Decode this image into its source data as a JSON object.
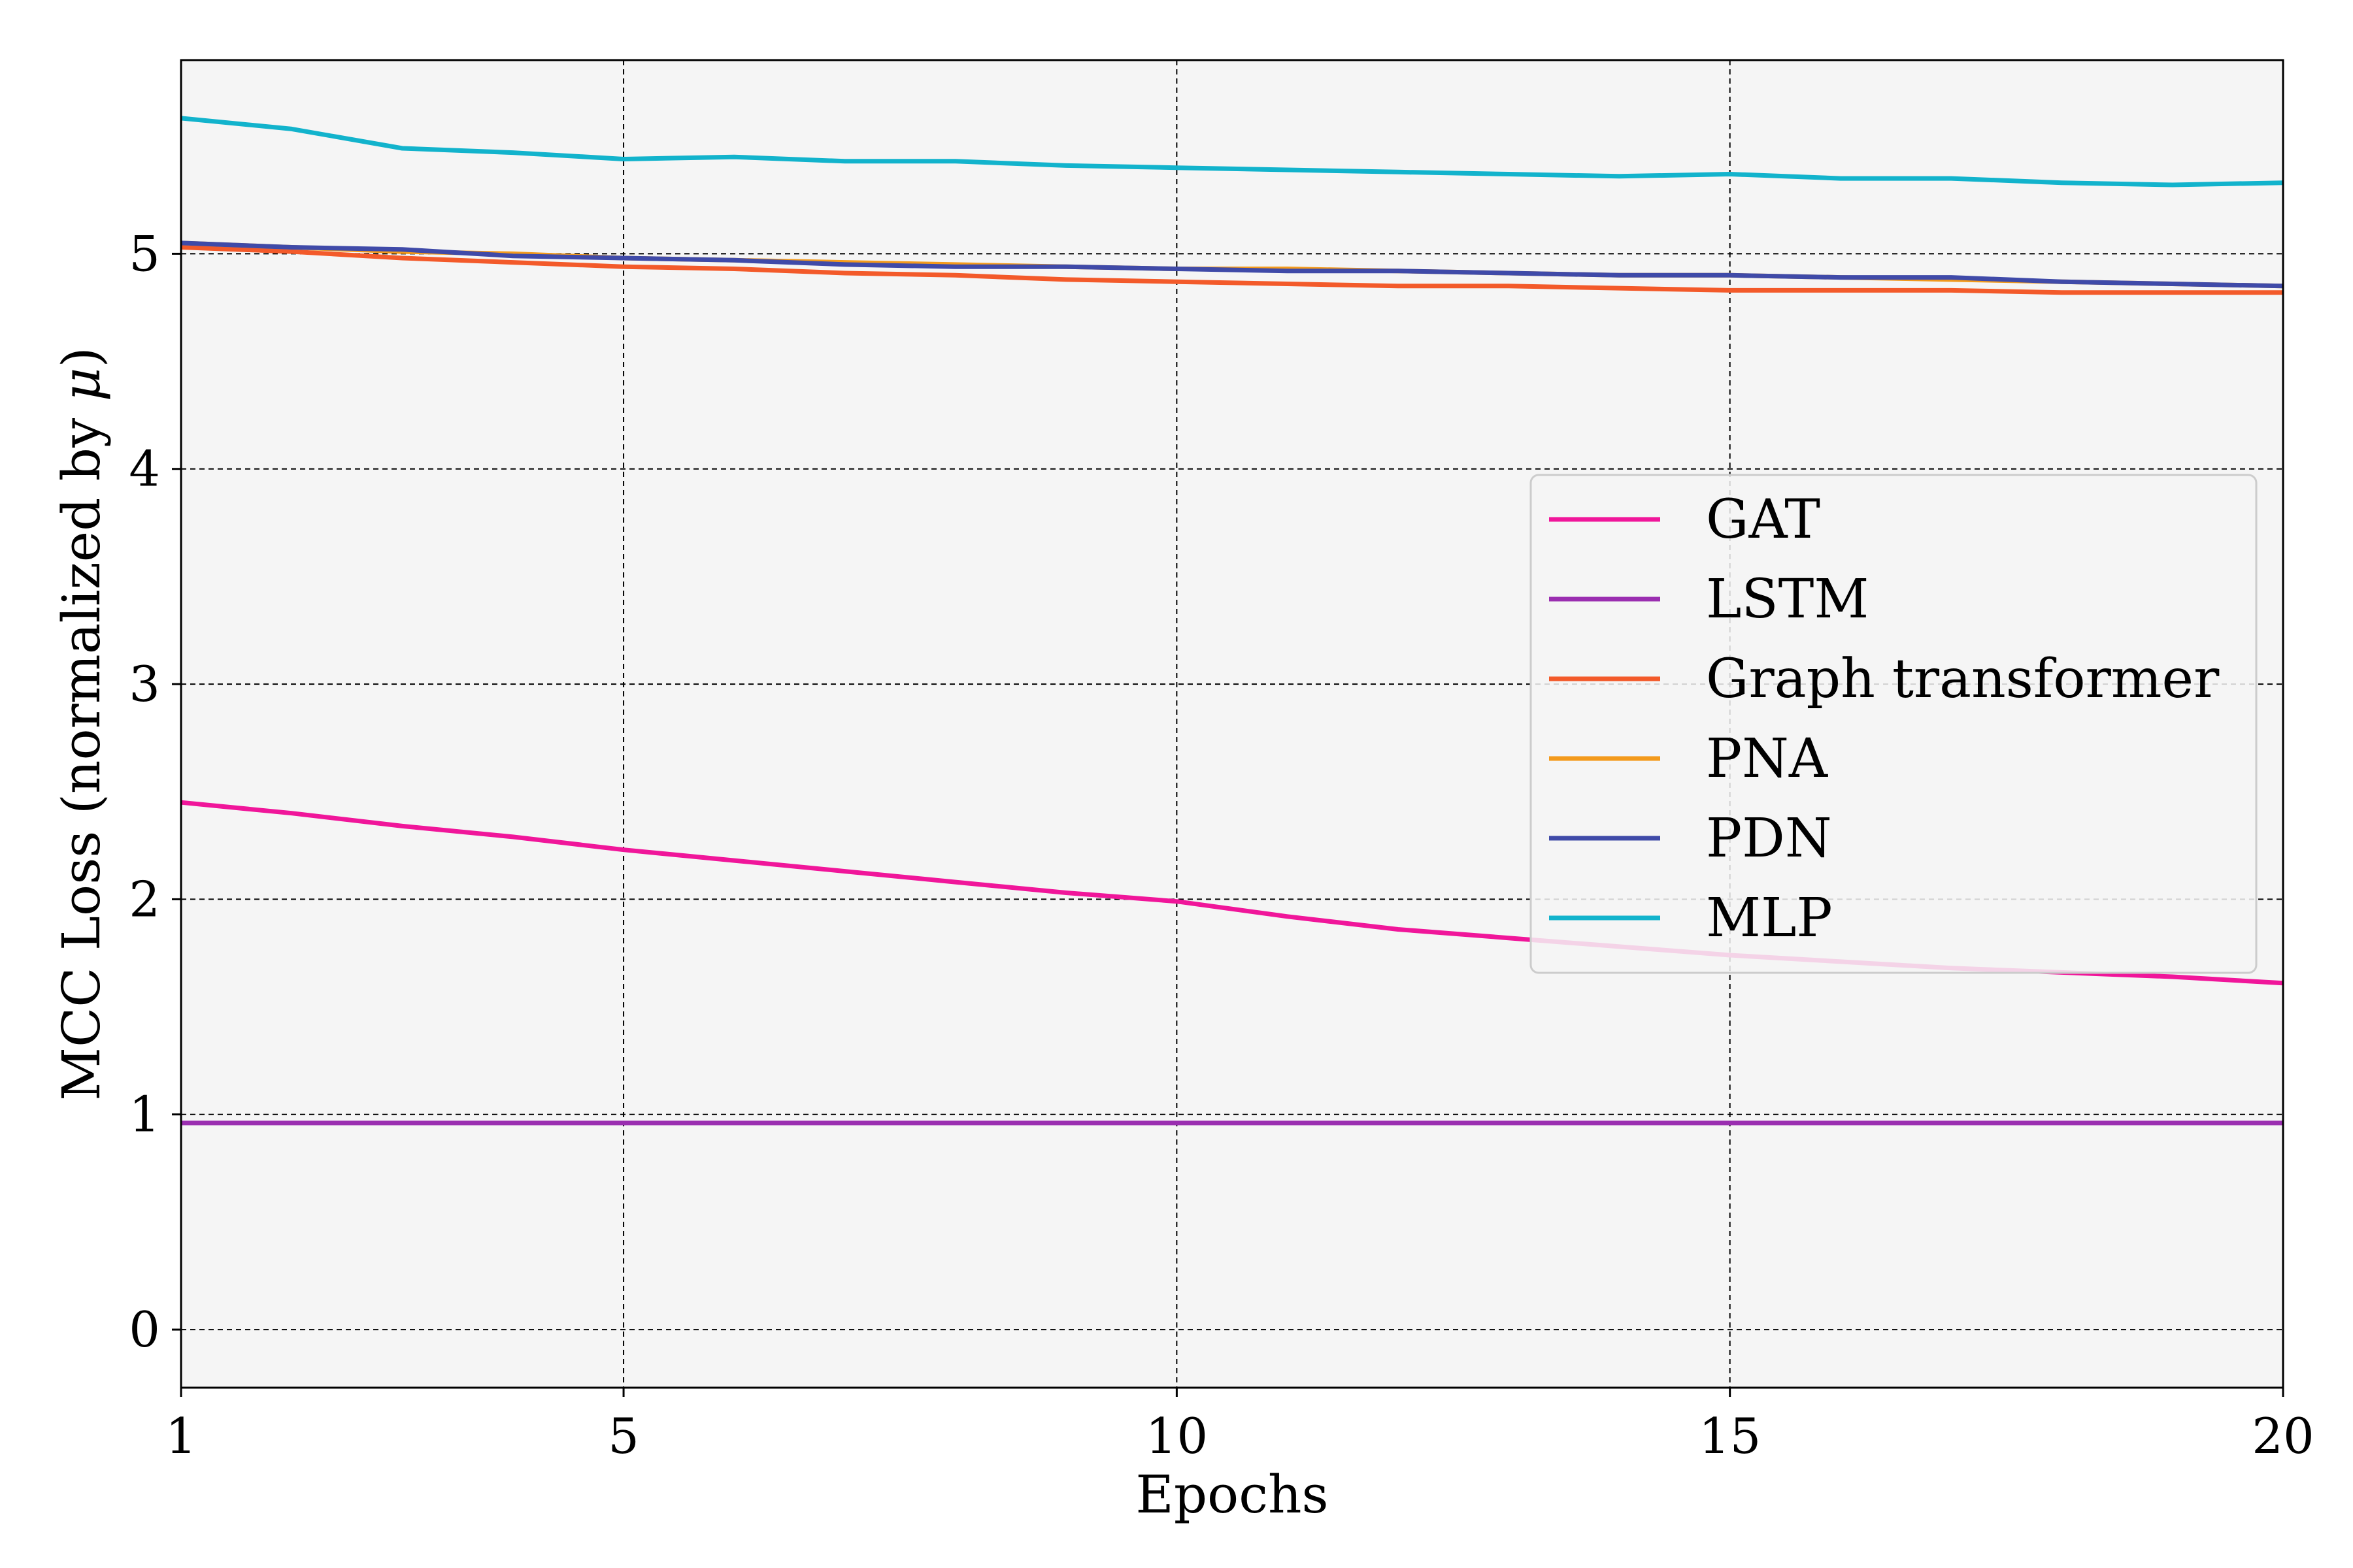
{
  "chart_data": {
    "type": "line",
    "title": "",
    "xlabel": "Epochs",
    "ylabel_main": "MCC Loss (normalized by ",
    "ylabel_symbol": "μ",
    "ylabel_tail": ")",
    "xlim": [
      1,
      20
    ],
    "ylim": [
      -0.27,
      5.9
    ],
    "xticks": [
      1,
      5,
      10,
      15,
      20
    ],
    "yticks": [
      0,
      1,
      2,
      3,
      4,
      5
    ],
    "grid": true,
    "legend_position": "center-right",
    "background": "#f5f5f5",
    "x": [
      1,
      2,
      3,
      4,
      5,
      6,
      7,
      8,
      9,
      10,
      11,
      12,
      13,
      14,
      15,
      16,
      17,
      18,
      19,
      20
    ],
    "series": [
      {
        "name": "GAT",
        "color": "#f0169a",
        "values": [
          2.45,
          2.4,
          2.34,
          2.29,
          2.23,
          2.18,
          2.13,
          2.08,
          2.03,
          1.99,
          1.92,
          1.86,
          1.82,
          1.78,
          1.74,
          1.71,
          1.68,
          1.66,
          1.64,
          1.61
        ]
      },
      {
        "name": "LSTM",
        "color": "#9a2eb0",
        "values": [
          0.96,
          0.96,
          0.96,
          0.96,
          0.96,
          0.96,
          0.96,
          0.96,
          0.96,
          0.96,
          0.96,
          0.96,
          0.96,
          0.96,
          0.96,
          0.96,
          0.96,
          0.96,
          0.96,
          0.96
        ]
      },
      {
        "name": "Graph transformer",
        "color": "#f35a2a",
        "values": [
          5.03,
          5.01,
          4.98,
          4.96,
          4.94,
          4.93,
          4.91,
          4.9,
          4.88,
          4.87,
          4.86,
          4.85,
          4.85,
          4.84,
          4.83,
          4.83,
          4.83,
          4.82,
          4.82,
          4.82
        ]
      },
      {
        "name": "PNA",
        "color": "#f39a1c",
        "values": [
          5.05,
          5.03,
          5.01,
          5.0,
          4.98,
          4.97,
          4.96,
          4.95,
          4.94,
          4.93,
          4.93,
          4.92,
          4.91,
          4.9,
          4.9,
          4.89,
          4.88,
          4.87,
          4.86,
          4.85
        ]
      },
      {
        "name": "PDN",
        "color": "#3f4aa8",
        "values": [
          5.05,
          5.03,
          5.02,
          4.99,
          4.98,
          4.97,
          4.95,
          4.94,
          4.94,
          4.93,
          4.92,
          4.92,
          4.91,
          4.9,
          4.9,
          4.89,
          4.89,
          4.87,
          4.86,
          4.85
        ]
      },
      {
        "name": "MLP",
        "color": "#12b3cc",
        "values": [
          5.63,
          5.58,
          5.49,
          5.47,
          5.44,
          5.45,
          5.43,
          5.43,
          5.41,
          5.4,
          5.39,
          5.38,
          5.37,
          5.36,
          5.37,
          5.35,
          5.35,
          5.33,
          5.32,
          5.33
        ]
      }
    ]
  }
}
